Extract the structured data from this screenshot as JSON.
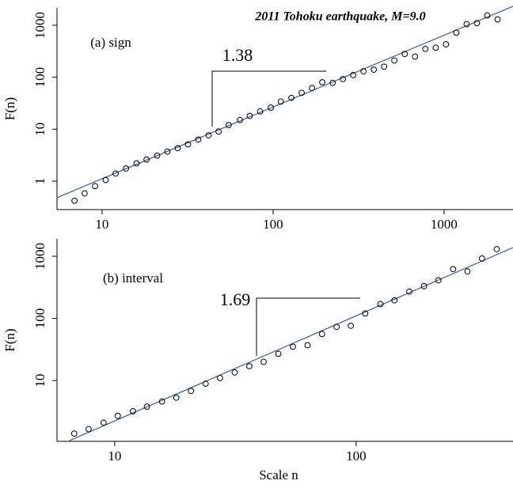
{
  "chart_data": [
    {
      "type": "scatter",
      "title": "2011 Tohoku earthquake, M=9.0",
      "panel_label": "(a) sign",
      "annotation": "1.38",
      "ylabel": "F(n)",
      "log_x": true,
      "log_y": true,
      "color": "#000000",
      "fit_color": "#2f5ea8",
      "xlim": [
        5.45,
        2530
      ],
      "ylim": [
        0.283,
        2160
      ],
      "xticks": [
        10,
        100,
        1000
      ],
      "yticks": [
        1,
        10,
        100,
        1000
      ],
      "x": [
        6.9,
        7.9,
        9.1,
        10.5,
        12.0,
        13.8,
        15.9,
        18.2,
        21.0,
        24.1,
        27.7,
        31.8,
        36.5,
        42,
        48,
        55,
        64,
        73,
        84,
        97,
        111,
        128,
        147,
        169,
        194,
        223,
        256,
        294,
        338,
        388,
        446,
        512,
        589,
        676,
        777,
        893,
        1026,
        1179,
        1355,
        1556,
        1788,
        2055
      ],
      "values": [
        0.42,
        0.58,
        0.8,
        1.05,
        1.4,
        1.75,
        2.2,
        2.6,
        3.1,
        3.7,
        4.3,
        5.1,
        6.3,
        7.6,
        9,
        12,
        15,
        18,
        22,
        26,
        34,
        40,
        50,
        62,
        80,
        78,
        92,
        110,
        130,
        140,
        160,
        210,
        280,
        250,
        350,
        370,
        430,
        720,
        1050,
        1100,
        1550,
        1300
      ],
      "fit": {
        "x": [
          5.45,
          2530
        ],
        "y": [
          0.48,
          2320
        ]
      }
    },
    {
      "type": "scatter",
      "panel_label": "(b) interval",
      "annotation": "1.69",
      "xlabel": "Scale n",
      "ylabel": "F(n)",
      "log_x": true,
      "log_y": true,
      "color": "#000000",
      "fit_color": "#2f5ea8",
      "xlim": [
        5.77,
        446
      ],
      "ylim": [
        1.05,
        1905
      ],
      "xticks": [
        10,
        100
      ],
      "yticks": [
        10,
        100,
        1000
      ],
      "x": [
        6.8,
        7.8,
        9.0,
        10.3,
        11.9,
        13.6,
        15.7,
        18.0,
        20.7,
        23.8,
        27.3,
        31.4,
        36.1,
        41.4,
        47.6,
        54.7,
        62.9,
        72.2,
        83,
        95,
        109,
        126,
        144,
        166,
        191,
        219,
        252,
        289,
        332,
        382
      ],
      "values": [
        1.4,
        1.65,
        2.1,
        2.7,
        3.2,
        3.8,
        4.6,
        5.3,
        6.8,
        8.9,
        11,
        13.5,
        17,
        20,
        27,
        35,
        37,
        56,
        73,
        76,
        120,
        170,
        195,
        270,
        330,
        410,
        620,
        570,
        920,
        1300
      ],
      "fit": {
        "x": [
          6.5,
          446
        ],
        "y": [
          1.08,
          1380
        ]
      }
    }
  ]
}
